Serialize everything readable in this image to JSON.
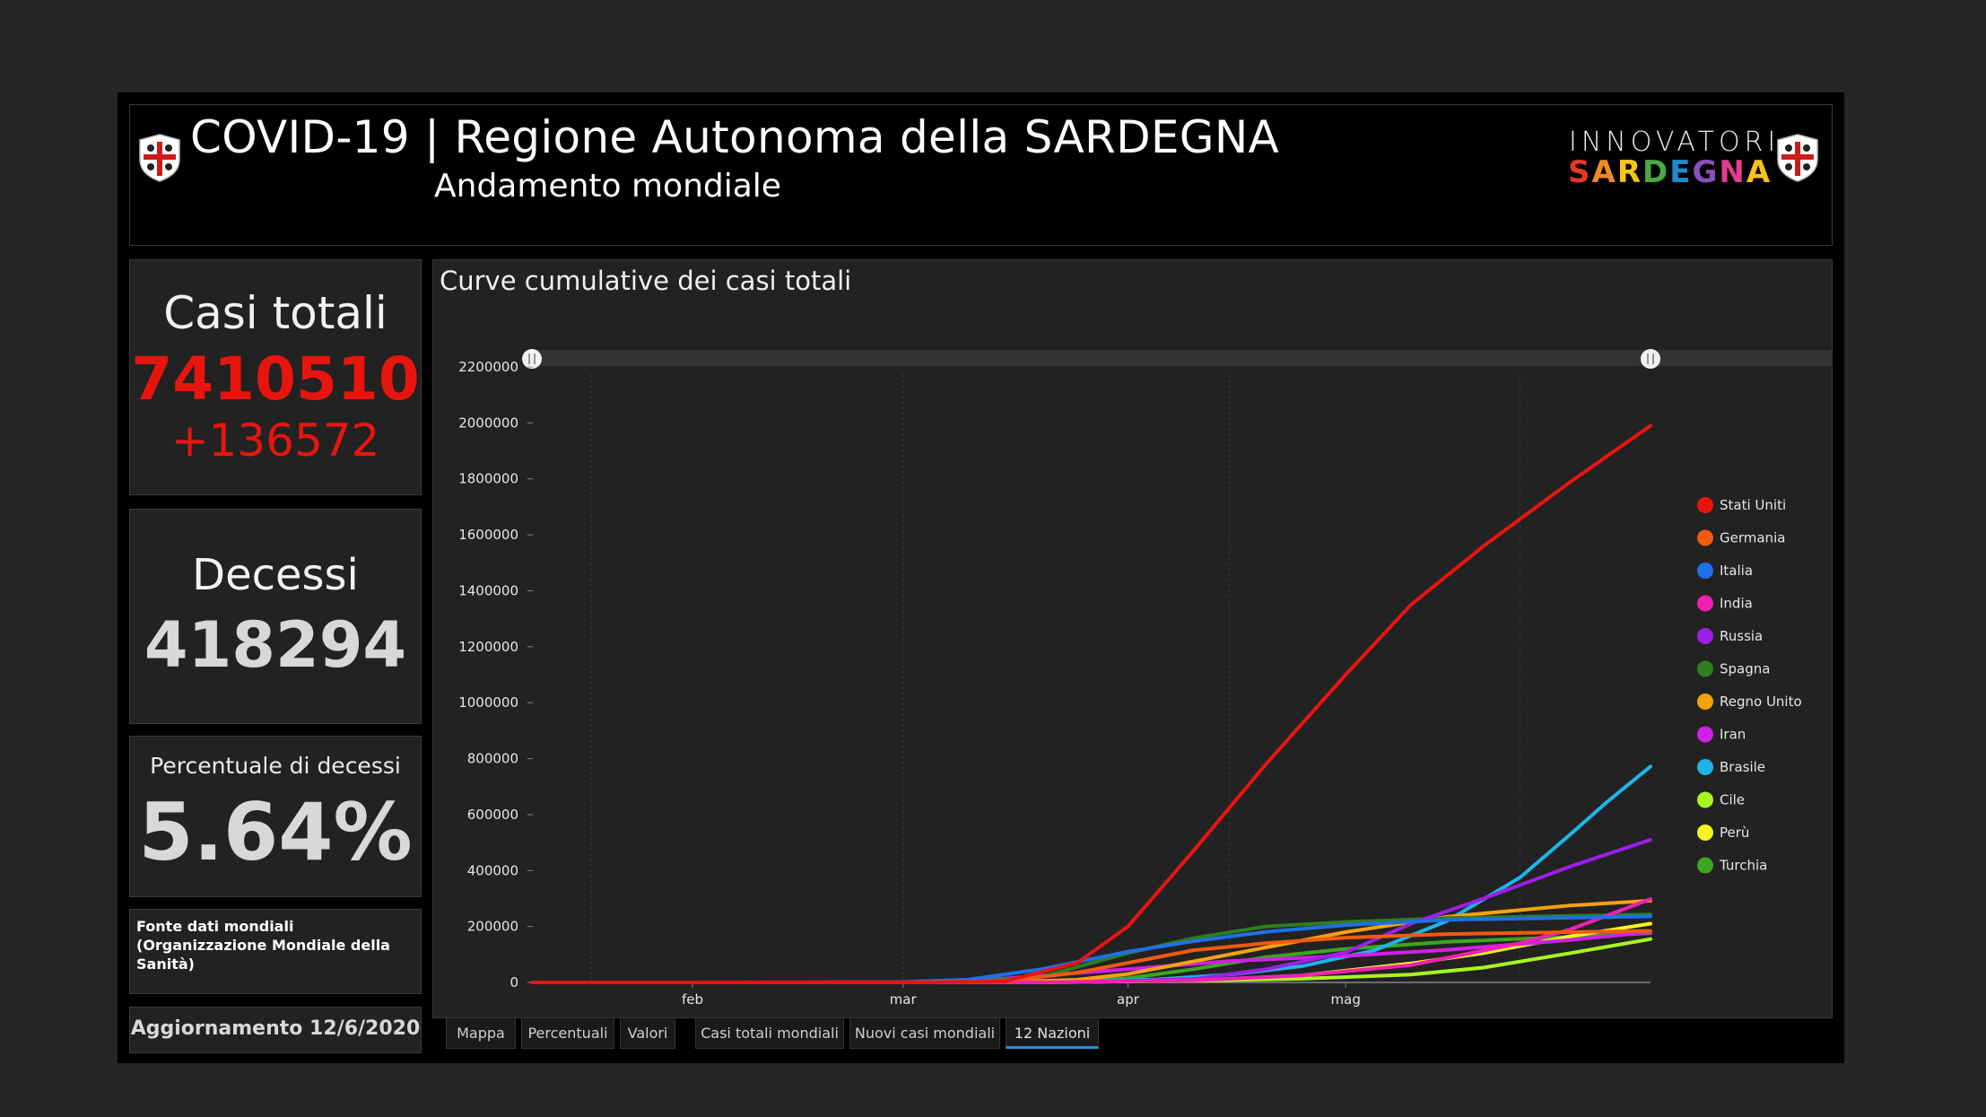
{
  "header": {
    "title": "COVID-19 | Regione Autonoma della SARDEGNA",
    "subtitle": "Andamento mondiale",
    "brand_top": "INNOVATORI",
    "brand_bottom": "SARDEGNA",
    "brand_colors": [
      "#e8352b",
      "#f08a24",
      "#f6c31c",
      "#4aa843",
      "#1e8ad1",
      "#8a4fbf",
      "#e53c8f",
      "#f6c31c"
    ]
  },
  "kpis": {
    "cases_label": "Casi totali",
    "cases_value": "7410510",
    "cases_delta": "+136572",
    "deaths_label": "Decessi",
    "deaths_value": "418294",
    "pct_label": "Percentuale di decessi",
    "pct_value": "5.64%",
    "source": "Fonte dati mondiali (Organizzazione Mondiale della Sanità)",
    "update": "Aggiornamento 12/6/2020"
  },
  "colors": {
    "cases": "#e8150f",
    "text": "#e6e6e6",
    "accent_tab": "#2b8fd6"
  },
  "tabs": [
    "Mappa",
    "Percentuali",
    "Valori",
    "Casi totali mondiali",
    "Nuovi casi mondiali",
    "12 Nazioni"
  ],
  "active_tab": "12 Nazioni",
  "chart_title": "Curve cumulative dei casi totali",
  "chart_data": {
    "type": "line",
    "title": "Curve cumulative dei casi totali",
    "x_ticks": [
      "feb",
      "mar",
      "apr",
      "mag"
    ],
    "y_ticks": [
      "0",
      "200000",
      "400000",
      "600000",
      "800000",
      "1000000",
      "1200000",
      "1400000",
      "1600000",
      "1800000",
      "2000000",
      "2200000"
    ],
    "ylim": [
      0,
      2200000
    ],
    "x_range": [
      "2020-01-10",
      "2020-06-12"
    ],
    "legend_position": "right",
    "series": [
      {
        "name": "Stati Uniti",
        "color": "#e8150f",
        "x": [
          "2020-01-10",
          "2020-03-05",
          "2020-03-15",
          "2020-03-25",
          "2020-04-01",
          "2020-04-10",
          "2020-04-20",
          "2020-05-01",
          "2020-05-10",
          "2020-05-20",
          "2020-06-01",
          "2020-06-12"
        ],
        "values": [
          0,
          200,
          3500,
          70000,
          200000,
          470000,
          780000,
          1100000,
          1350000,
          1560000,
          1790000,
          1990000
        ]
      },
      {
        "name": "Germania",
        "color": "#f25a0f",
        "x": [
          "2020-01-10",
          "2020-03-01",
          "2020-03-15",
          "2020-03-25",
          "2020-04-01",
          "2020-04-10",
          "2020-04-20",
          "2020-05-01",
          "2020-05-15",
          "2020-06-12"
        ],
        "values": [
          0,
          100,
          5000,
          35000,
          70000,
          115000,
          140000,
          160000,
          173000,
          184000
        ]
      },
      {
        "name": "Italia",
        "color": "#1f6fe8",
        "x": [
          "2020-01-10",
          "2020-02-21",
          "2020-03-01",
          "2020-03-10",
          "2020-03-20",
          "2020-04-01",
          "2020-04-10",
          "2020-04-20",
          "2020-05-01",
          "2020-05-15",
          "2020-06-12"
        ],
        "values": [
          0,
          20,
          1700,
          10000,
          47000,
          110000,
          147000,
          181000,
          205000,
          224000,
          236000
        ]
      },
      {
        "name": "India",
        "color": "#f21fb4",
        "x": [
          "2020-01-10",
          "2020-03-20",
          "2020-04-10",
          "2020-04-25",
          "2020-05-10",
          "2020-05-25",
          "2020-06-01",
          "2020-06-12"
        ],
        "values": [
          0,
          300,
          7000,
          25000,
          62000,
          140000,
          190000,
          298000
        ]
      },
      {
        "name": "Russia",
        "color": "#9c1fe8",
        "x": [
          "2020-01-10",
          "2020-03-25",
          "2020-04-10",
          "2020-04-20",
          "2020-05-01",
          "2020-05-10",
          "2020-05-20",
          "2020-06-01",
          "2020-06-12"
        ],
        "values": [
          0,
          600,
          12000,
          47000,
          107000,
          210000,
          300000,
          415000,
          510000
        ]
      },
      {
        "name": "Spagna",
        "color": "#2e7d1f",
        "x": [
          "2020-01-10",
          "2020-03-01",
          "2020-03-10",
          "2020-03-20",
          "2020-04-01",
          "2020-04-10",
          "2020-04-20",
          "2020-05-01",
          "2020-05-15",
          "2020-06-12"
        ],
        "values": [
          0,
          80,
          1700,
          20000,
          105000,
          158000,
          200000,
          216000,
          230000,
          243000
        ]
      },
      {
        "name": "Regno Unito",
        "color": "#f5a20f",
        "x": [
          "2020-01-10",
          "2020-03-01",
          "2020-03-15",
          "2020-03-25",
          "2020-04-01",
          "2020-04-10",
          "2020-04-20",
          "2020-05-01",
          "2020-05-15",
          "2020-06-01",
          "2020-06-12"
        ],
        "values": [
          0,
          30,
          1400,
          9500,
          30000,
          75000,
          125000,
          180000,
          235000,
          275000,
          292000
        ]
      },
      {
        "name": "Iran",
        "color": "#d21fe8",
        "x": [
          "2020-01-10",
          "2020-02-20",
          "2020-03-01",
          "2020-03-15",
          "2020-04-01",
          "2020-04-15",
          "2020-05-01",
          "2020-05-15",
          "2020-06-01",
          "2020-06-12"
        ],
        "values": [
          0,
          10,
          1500,
          14000,
          47000,
          76000,
          95000,
          116000,
          152000,
          180000
        ]
      },
      {
        "name": "Brasile",
        "color": "#1fb4e8",
        "x": [
          "2020-01-10",
          "2020-03-10",
          "2020-03-25",
          "2020-04-05",
          "2020-04-15",
          "2020-04-25",
          "2020-05-05",
          "2020-05-15",
          "2020-05-25",
          "2020-06-01",
          "2020-06-06",
          "2020-06-12"
        ],
        "values": [
          0,
          30,
          2500,
          11000,
          28000,
          58000,
          115000,
          220000,
          375000,
          530000,
          645000,
          772000
        ]
      },
      {
        "name": "Cile",
        "color": "#a8f51f",
        "x": [
          "2020-01-10",
          "2020-03-20",
          "2020-04-10",
          "2020-04-25",
          "2020-05-10",
          "2020-05-20",
          "2020-06-01",
          "2020-06-12"
        ],
        "values": [
          0,
          400,
          6500,
          13000,
          28000,
          53000,
          105000,
          155000
        ]
      },
      {
        "name": "Perù",
        "color": "#f5f51f",
        "x": [
          "2020-01-10",
          "2020-03-20",
          "2020-04-10",
          "2020-04-25",
          "2020-05-10",
          "2020-05-20",
          "2020-06-01",
          "2020-06-12"
        ],
        "values": [
          0,
          300,
          6000,
          25000,
          68000,
          105000,
          165000,
          210000
        ]
      },
      {
        "name": "Turchia",
        "color": "#3aa81f",
        "x": [
          "2020-01-10",
          "2020-03-15",
          "2020-03-25",
          "2020-04-01",
          "2020-04-10",
          "2020-04-20",
          "2020-05-01",
          "2020-05-15",
          "2020-06-01",
          "2020-06-12"
        ],
        "values": [
          0,
          50,
          2400,
          15000,
          47000,
          90000,
          120000,
          145000,
          163000,
          176000
        ]
      }
    ]
  }
}
